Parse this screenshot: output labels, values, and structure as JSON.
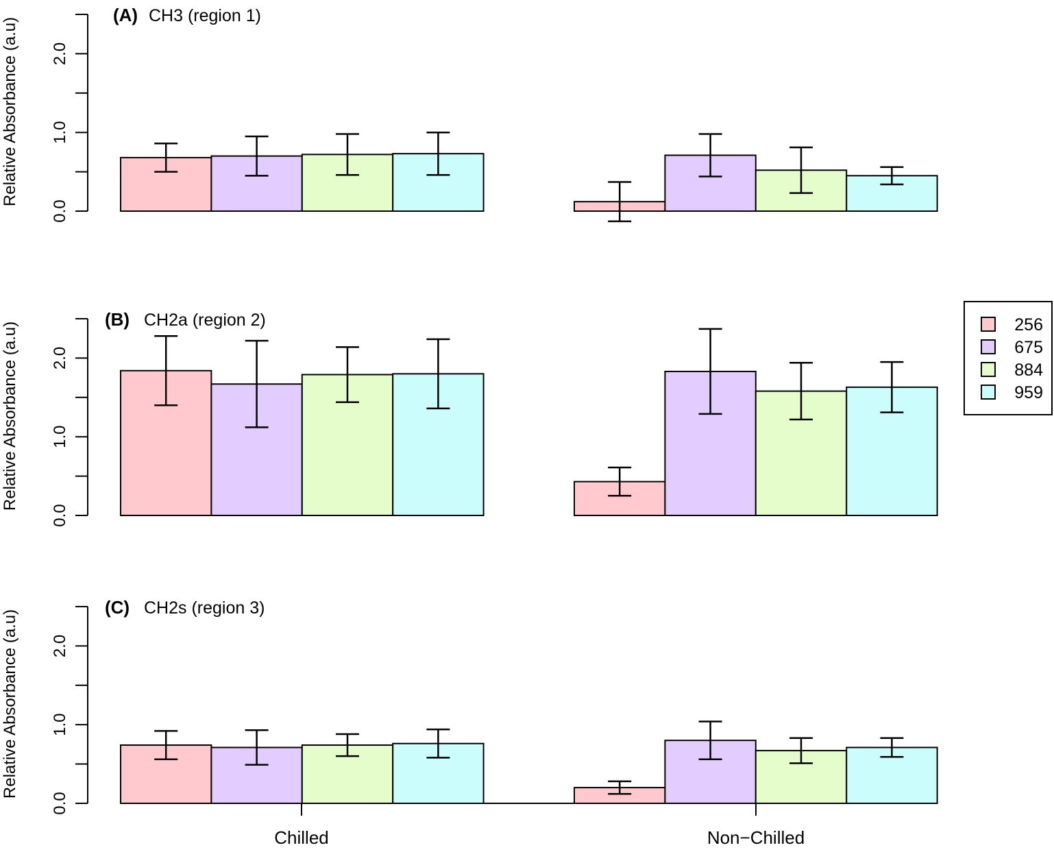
{
  "chart_data": [
    {
      "type": "bar",
      "tag": "(A)",
      "title": "CH3 (region 1)",
      "ylabel": "Relative Absorbance (a.u)",
      "ylim": [
        0,
        2.5
      ],
      "yticks": [
        "0.0",
        "1.0",
        "2.0"
      ],
      "categories": [
        "Chilled",
        "Non−Chilled"
      ],
      "series": [
        {
          "name": "256",
          "values": [
            0.68,
            0.12
          ],
          "errors": [
            0.18,
            0.25
          ]
        },
        {
          "name": "675",
          "values": [
            0.7,
            0.71
          ],
          "errors": [
            0.25,
            0.27
          ]
        },
        {
          "name": "884",
          "values": [
            0.72,
            0.52
          ],
          "errors": [
            0.26,
            0.29
          ]
        },
        {
          "name": "959",
          "values": [
            0.73,
            0.45
          ],
          "errors": [
            0.27,
            0.11
          ]
        }
      ]
    },
    {
      "type": "bar",
      "tag": "(B)",
      "title": "CH2a (region 2)",
      "ylabel": "Relative Absorbance (a.u)",
      "ylim": [
        0,
        2.5
      ],
      "yticks": [
        "0.0",
        "1.0",
        "2.0"
      ],
      "categories": [
        "Chilled",
        "Non−Chilled"
      ],
      "series": [
        {
          "name": "256",
          "values": [
            1.84,
            0.43
          ],
          "errors": [
            0.44,
            0.18
          ]
        },
        {
          "name": "675",
          "values": [
            1.67,
            1.83
          ],
          "errors": [
            0.55,
            0.54
          ]
        },
        {
          "name": "884",
          "values": [
            1.79,
            1.58
          ],
          "errors": [
            0.35,
            0.36
          ]
        },
        {
          "name": "959",
          "values": [
            1.8,
            1.63
          ],
          "errors": [
            0.44,
            0.32
          ]
        }
      ]
    },
    {
      "type": "bar",
      "tag": "(C)",
      "title": "CH2s (region 3)",
      "ylabel": "Relative Absorbance (a.u)",
      "ylim": [
        0,
        2.5
      ],
      "yticks": [
        "0.0",
        "1.0",
        "2.0"
      ],
      "categories": [
        "Chilled",
        "Non−Chilled"
      ],
      "series": [
        {
          "name": "256",
          "values": [
            0.74,
            0.2
          ],
          "errors": [
            0.18,
            0.08
          ]
        },
        {
          "name": "675",
          "values": [
            0.71,
            0.8
          ],
          "errors": [
            0.22,
            0.24
          ]
        },
        {
          "name": "884",
          "values": [
            0.74,
            0.67
          ],
          "errors": [
            0.14,
            0.16
          ]
        },
        {
          "name": "959",
          "values": [
            0.76,
            0.71
          ],
          "errors": [
            0.18,
            0.12
          ]
        }
      ]
    }
  ],
  "legend": {
    "placement": "right",
    "items": [
      {
        "label": "256",
        "color": "#FFC9CD"
      },
      {
        "label": "675",
        "color": "#E3CCFF"
      },
      {
        "label": "884",
        "color": "#E5FDCA"
      },
      {
        "label": "959",
        "color": "#CAFDFC"
      }
    ]
  },
  "colors": [
    "#FFC9CD",
    "#E3CCFF",
    "#E5FDCA",
    "#CAFDFC"
  ]
}
